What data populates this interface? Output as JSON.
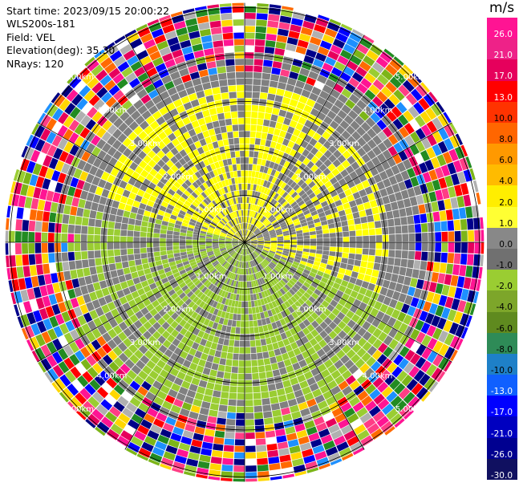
{
  "header": {
    "start_time": "Start time: 2023/09/15 20:00:22",
    "instrument": "WLS200s-181",
    "field": "Field: VEL",
    "elevation": "Elevation(deg): 35.30",
    "nrays": "NRays: 120"
  },
  "colorbar": {
    "unit": "m/s",
    "ticks": [
      "26.0",
      "21.0",
      "17.0",
      "13.0",
      "10.0",
      "8.0",
      "6.0",
      "4.0",
      "2.0",
      "1.0",
      "0.0",
      "-1.0",
      "-2.0",
      "-4.0",
      "-6.0",
      "-8.0",
      "-10.0",
      "-13.0",
      "-17.0",
      "-21.0",
      "-26.0",
      "-30.0"
    ],
    "colors": [
      "#ff1493",
      "#ff3d85",
      "#e8003a",
      "#ff1a1a",
      "#ff4500",
      "#ff6a00",
      "#ff8c00",
      "#ffa500",
      "#ffd700",
      "#ffff00",
      "#b3b3b3",
      "#808080",
      "#666666",
      "#9acd32",
      "#7cb518",
      "#6b8e23",
      "#228b22",
      "#1e90ff",
      "#0000ff",
      "#0000cd",
      "#000080",
      "#0a0a5a",
      "#111155"
    ]
  },
  "chart_data": {
    "type": "polar-ppi",
    "field": "VEL",
    "units": "m/s",
    "nrays": 120,
    "range_rings_km": [
      1.0,
      2.0,
      3.0,
      4.0,
      5.0
    ],
    "ring_labels": [
      "1.00km",
      "2.00km",
      "3.00km",
      "4.00km",
      "5.00km"
    ],
    "spokes_deg": [
      0,
      30,
      60,
      90,
      120,
      150,
      180,
      210,
      240,
      270,
      300,
      330
    ],
    "regions": [
      {
        "sector": "north/northwest",
        "inner_km": 0.0,
        "outer_km": 3.6,
        "velocity_ms": "1.0 to 2.0"
      },
      {
        "sector": "east/northeast",
        "inner_km": 0.5,
        "outer_km": 3.2,
        "velocity_ms": "0.0 to 1.0"
      },
      {
        "sector": "south/southwest",
        "inner_km": 0.0,
        "outer_km": 4.5,
        "velocity_ms": "-1.0 to -2.0"
      },
      {
        "sector": "all azimuths",
        "inner_km": 4.2,
        "outer_km": 5.8,
        "velocity_ms": "noise -30.0 to 26.0"
      }
    ]
  }
}
